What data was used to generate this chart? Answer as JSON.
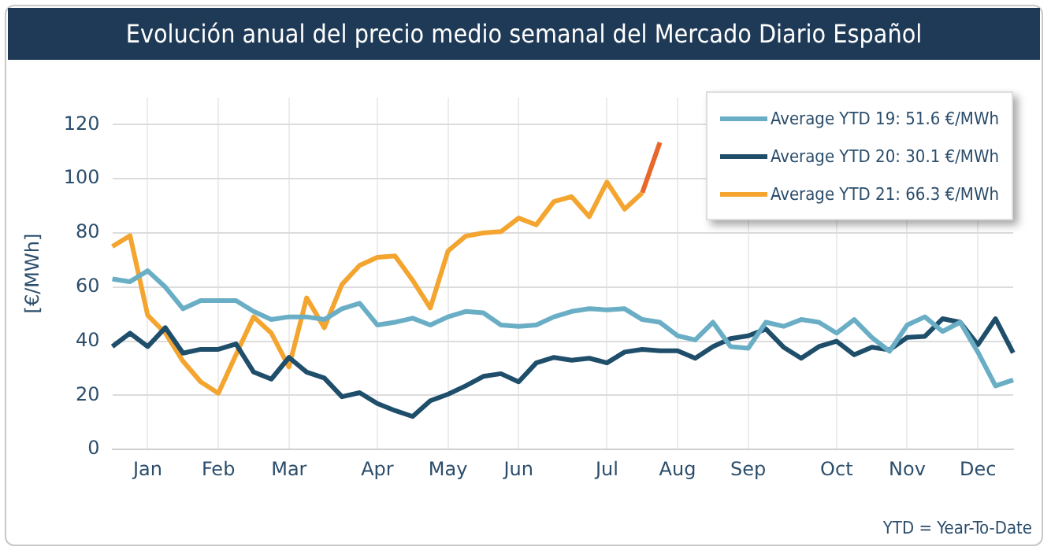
{
  "chart_data": {
    "type": "line",
    "title": "Evolución anual del precio medio semanal del Mercado Diario Español",
    "ylabel": "[€/MWh]",
    "categories": [
      null,
      null,
      "Jan",
      null,
      null,
      null,
      "Feb",
      null,
      null,
      null,
      "Mar",
      null,
      null,
      null,
      null,
      "Apr",
      null,
      null,
      null,
      "May",
      null,
      null,
      null,
      "Jun",
      null,
      null,
      null,
      null,
      "Jul",
      null,
      null,
      null,
      "Aug",
      null,
      null,
      null,
      "Sep",
      null,
      null,
      null,
      null,
      "Oct",
      null,
      null,
      null,
      "Nov",
      null,
      null,
      null,
      "Dec",
      null,
      null
    ],
    "series": [
      {
        "name": "Average YTD 19: 51.6 €/MWh",
        "color": "#6aaec6",
        "values": [
          63,
          62,
          66,
          60,
          52,
          55,
          55,
          55,
          51,
          48,
          49,
          49,
          48,
          52,
          54,
          46,
          47,
          48.5,
          46,
          49,
          51,
          50.5,
          46,
          45.5,
          46,
          49,
          51,
          52,
          51.6,
          52,
          48,
          47,
          42,
          40.5,
          47,
          38,
          37.4,
          47,
          45.5,
          48,
          47,
          43,
          48,
          41.4,
          36.3,
          46,
          49,
          43.6,
          47,
          36,
          23.5,
          25.7
        ]
      },
      {
        "name": "Average YTD 20: 30.1 €/MWh",
        "color": "#1f4e6b",
        "values": [
          38,
          43,
          38,
          45,
          35.6,
          37,
          37,
          39,
          28.6,
          26,
          34,
          28.6,
          26.4,
          19.5,
          21,
          17,
          14.4,
          12.2,
          18,
          20.4,
          23.5,
          27,
          28,
          25,
          32,
          34,
          33,
          33.7,
          32,
          36,
          37,
          36.5,
          36.5,
          33.7,
          38,
          41,
          42,
          44.5,
          37.8,
          33.7,
          38,
          40,
          35,
          37.8,
          36.8,
          41.4,
          41.8,
          48.3,
          47,
          38.7,
          48.3,
          35.7
        ]
      },
      {
        "name": "Average YTD 21: 66.3 €/MWh",
        "color": "#f3a530",
        "values": [
          75,
          79,
          49.6,
          43,
          32.6,
          25,
          20.8,
          35,
          49,
          43,
          30.5,
          56,
          45,
          61,
          68,
          71,
          71.5,
          62.5,
          52.3,
          73.3,
          78.8,
          80,
          80.5,
          85.5,
          83,
          91.6,
          93.4,
          86,
          98.8,
          88.8,
          94.8,
          null,
          null,
          null,
          null,
          null,
          null,
          null,
          null,
          null,
          null,
          null,
          null,
          null,
          null,
          null,
          null,
          null,
          null,
          null,
          null,
          null
        ]
      },
      {
        "color": "#e8672a",
        "values": [
          null,
          null,
          null,
          null,
          null,
          null,
          null,
          null,
          null,
          null,
          null,
          null,
          null,
          null,
          null,
          null,
          null,
          null,
          null,
          null,
          null,
          null,
          null,
          null,
          null,
          null,
          null,
          null,
          null,
          null,
          94.8,
          113.4,
          null,
          null,
          null,
          null,
          null,
          null,
          null,
          null,
          null,
          null,
          null,
          null,
          null,
          null,
          null,
          null,
          null,
          null,
          null,
          null
        ]
      }
    ],
    "ylim": [
      0,
      130
    ],
    "yticks": [
      0,
      20,
      40,
      60,
      80,
      100,
      120
    ],
    "grid": true,
    "legend": "top right",
    "marker": "none",
    "line_style": "solid",
    "annotations": [
      "YTD = Year-To-Date"
    ]
  }
}
